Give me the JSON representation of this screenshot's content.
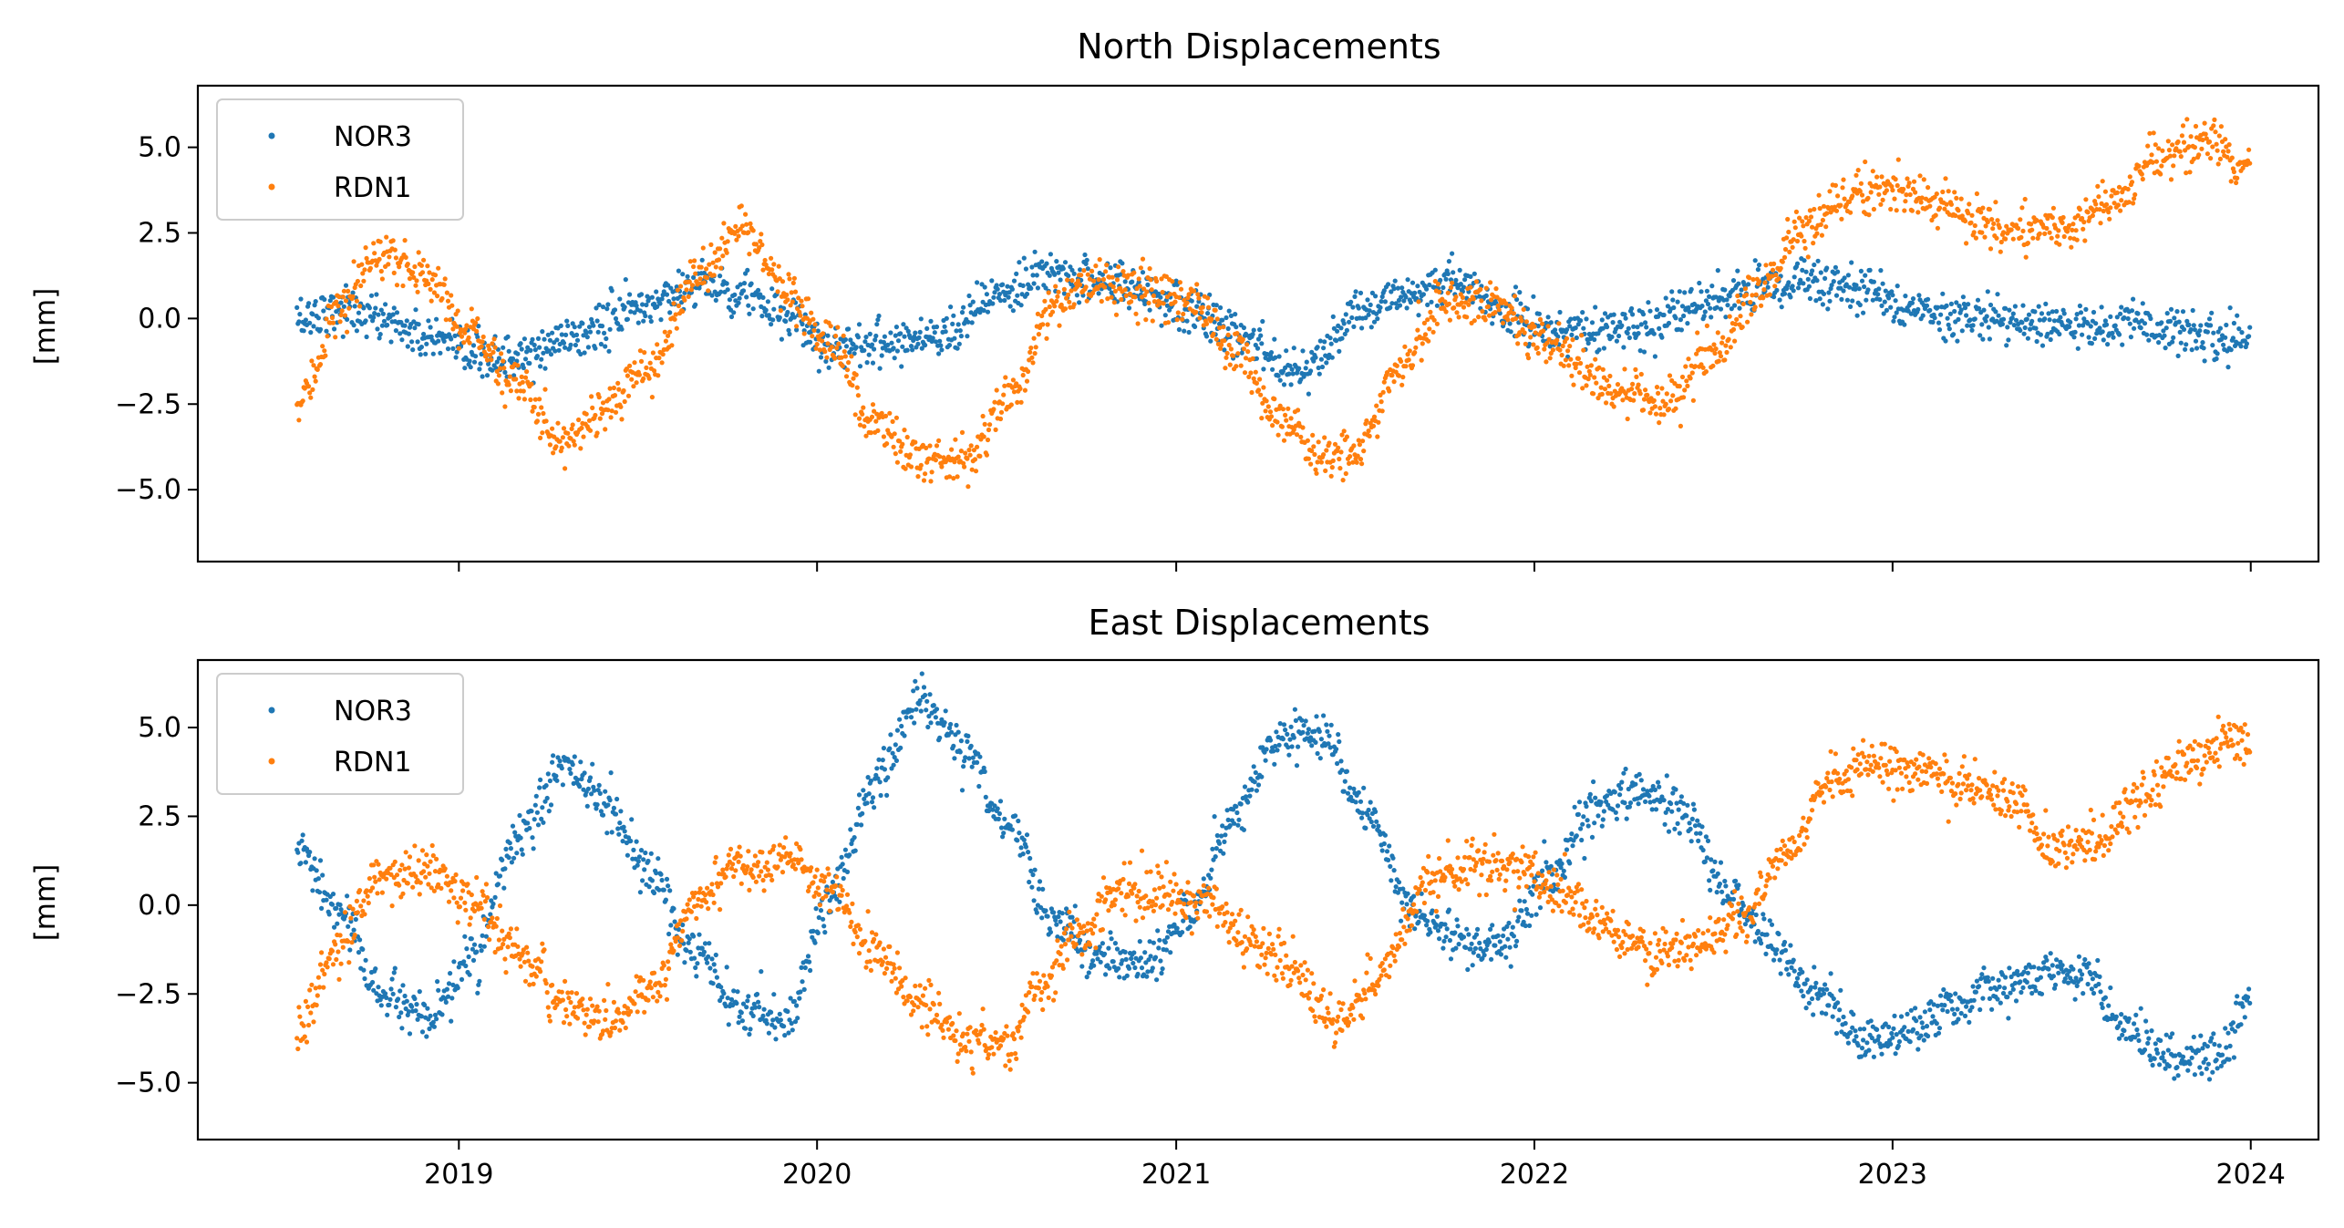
{
  "chart_data": [
    {
      "type": "scatter",
      "title": "North Displacements",
      "xlabel": "",
      "ylabel": "[mm]",
      "ylim": [
        -7.1,
        6.8
      ],
      "xlim": [
        "2018-04-10",
        "2024-03-10"
      ],
      "x_ticks": [
        "2019",
        "2020",
        "2021",
        "2022",
        "2023",
        "2024"
      ],
      "x_tick_labels_visible": false,
      "y_ticks": [
        -5.0,
        -2.5,
        0.0,
        2.5,
        5.0
      ],
      "y_tick_labels": [
        "−5.0",
        "−2.5",
        "0.0",
        "2.5",
        "5.0"
      ],
      "legend": "top-left",
      "grid": false,
      "series": [
        {
          "name": "NOR3",
          "color": "#1f77b4",
          "x": [
            "2018-07-20",
            "2018-09-01",
            "2018-10-15",
            "2018-12-01",
            "2019-01-15",
            "2019-03-01",
            "2019-05-01",
            "2019-07-01",
            "2019-09-01",
            "2019-10-15",
            "2019-12-01",
            "2020-01-15",
            "2020-03-01",
            "2020-05-01",
            "2020-07-01",
            "2020-09-01",
            "2020-10-15",
            "2020-12-01",
            "2021-01-15",
            "2021-03-01",
            "2021-05-01",
            "2021-06-01",
            "2021-07-01",
            "2021-09-01",
            "2021-10-15",
            "2021-12-01",
            "2022-01-15",
            "2022-03-01",
            "2022-05-01",
            "2022-07-01",
            "2022-09-01",
            "2022-10-15",
            "2022-12-01",
            "2023-01-15",
            "2023-03-01",
            "2023-05-01",
            "2023-07-01",
            "2023-09-01",
            "2023-10-15",
            "2023-12-01",
            "2024-01-01"
          ],
          "y": [
            0.0,
            0.3,
            0.0,
            -0.6,
            -1.1,
            -1.2,
            -0.5,
            0.3,
            1.0,
            0.8,
            0.0,
            -0.8,
            -0.7,
            -0.5,
            0.6,
            1.3,
            1.1,
            0.8,
            0.3,
            -0.5,
            -1.4,
            -1.0,
            0.1,
            0.8,
            1.0,
            0.2,
            -0.3,
            -0.4,
            -0.2,
            0.5,
            1.0,
            1.1,
            0.8,
            0.3,
            0.1,
            -0.1,
            -0.2,
            -0.2,
            -0.3,
            -0.6,
            -0.6
          ]
        },
        {
          "name": "RDN1",
          "color": "#ff7f0e",
          "x": [
            "2018-07-20",
            "2018-09-01",
            "2018-10-15",
            "2018-12-01",
            "2019-01-15",
            "2019-03-01",
            "2019-04-15",
            "2019-06-01",
            "2019-07-15",
            "2019-09-01",
            "2019-10-20",
            "2019-12-01",
            "2020-01-15",
            "2020-03-01",
            "2020-04-15",
            "2020-06-01",
            "2020-07-15",
            "2020-09-01",
            "2020-10-15",
            "2020-12-01",
            "2021-01-15",
            "2021-03-01",
            "2021-04-15",
            "2021-06-01",
            "2021-07-01",
            "2021-08-15",
            "2021-10-01",
            "2021-11-15",
            "2022-01-01",
            "2022-02-15",
            "2022-04-01",
            "2022-05-15",
            "2022-07-01",
            "2022-08-15",
            "2022-10-01",
            "2022-11-15",
            "2023-01-01",
            "2023-02-15",
            "2023-04-01",
            "2023-05-15",
            "2023-07-01",
            "2023-08-15",
            "2023-10-01",
            "2023-11-15",
            "2024-01-01"
          ],
          "y": [
            -2.6,
            0.2,
            1.9,
            1.2,
            -0.5,
            -1.9,
            -3.5,
            -2.6,
            -1.5,
            1.3,
            2.7,
            0.6,
            -0.8,
            -3.0,
            -4.1,
            -4.1,
            -2.3,
            0.5,
            1.1,
            0.8,
            0.5,
            -1.0,
            -2.8,
            -4.1,
            -4.0,
            -1.5,
            0.4,
            0.5,
            -0.5,
            -1.4,
            -2.2,
            -2.5,
            -1.0,
            0.6,
            2.6,
            3.5,
            3.9,
            3.3,
            2.8,
            2.5,
            2.7,
            3.5,
            4.6,
            5.2,
            4.3
          ]
        }
      ]
    },
    {
      "type": "scatter",
      "title": "East Displacements",
      "xlabel": "",
      "ylabel": "[mm]",
      "ylim": [
        -6.6,
        6.9
      ],
      "xlim": [
        "2018-04-10",
        "2024-03-10"
      ],
      "x_ticks": [
        "2019",
        "2020",
        "2021",
        "2022",
        "2023",
        "2024"
      ],
      "x_tick_labels_visible": true,
      "y_ticks": [
        -5.0,
        -2.5,
        0.0,
        2.5,
        5.0
      ],
      "y_tick_labels": [
        "−5.0",
        "−2.5",
        "0.0",
        "2.5",
        "5.0"
      ],
      "legend": "top-left",
      "grid": false,
      "series": [
        {
          "name": "NOR3",
          "color": "#1f77b4",
          "x": [
            "2018-07-20",
            "2018-09-01",
            "2018-10-15",
            "2018-12-01",
            "2019-01-15",
            "2019-03-01",
            "2019-04-20",
            "2019-06-01",
            "2019-07-15",
            "2019-09-01",
            "2019-10-15",
            "2019-12-01",
            "2020-01-15",
            "2020-03-01",
            "2020-04-15",
            "2020-06-01",
            "2020-07-15",
            "2020-09-01",
            "2020-10-15",
            "2020-12-01",
            "2021-01-15",
            "2021-03-01",
            "2021-04-15",
            "2021-06-01",
            "2021-07-15",
            "2021-09-01",
            "2021-10-15",
            "2021-12-01",
            "2022-01-15",
            "2022-03-01",
            "2022-04-15",
            "2022-06-01",
            "2022-07-15",
            "2022-09-01",
            "2022-10-15",
            "2022-12-01",
            "2023-01-15",
            "2023-03-01",
            "2023-04-15",
            "2023-06-01",
            "2023-07-15",
            "2023-09-01",
            "2023-10-15",
            "2023-12-01",
            "2024-01-01"
          ],
          "y": [
            1.5,
            -0.2,
            -2.5,
            -3.3,
            -1.5,
            1.8,
            3.9,
            2.8,
            0.8,
            -1.5,
            -3.0,
            -3.2,
            0.3,
            3.5,
            5.8,
            4.3,
            2.2,
            -0.5,
            -1.5,
            -1.6,
            -0.3,
            2.5,
            4.7,
            4.8,
            2.5,
            -0.2,
            -1.1,
            -1.1,
            0.8,
            2.6,
            3.3,
            2.5,
            0.5,
            -1.1,
            -2.5,
            -3.8,
            -3.7,
            -2.8,
            -2.3,
            -2.0,
            -2.0,
            -3.5,
            -4.4,
            -4.2,
            -2.6
          ]
        },
        {
          "name": "RDN1",
          "color": "#ff7f0e",
          "x": [
            "2018-07-20",
            "2018-09-01",
            "2018-10-15",
            "2018-12-01",
            "2019-01-15",
            "2019-03-01",
            "2019-04-15",
            "2019-06-01",
            "2019-07-15",
            "2019-09-01",
            "2019-10-15",
            "2019-12-01",
            "2020-01-15",
            "2020-03-01",
            "2020-04-15",
            "2020-06-01",
            "2020-07-15",
            "2020-08-15",
            "2020-09-20",
            "2020-11-01",
            "2020-12-15",
            "2021-02-01",
            "2021-03-15",
            "2021-05-01",
            "2021-06-15",
            "2021-08-01",
            "2021-09-15",
            "2021-11-01",
            "2021-12-15",
            "2022-02-01",
            "2022-03-15",
            "2022-05-01",
            "2022-06-15",
            "2022-08-01",
            "2022-09-15",
            "2022-11-01",
            "2022-12-15",
            "2023-02-01",
            "2023-03-15",
            "2023-05-01",
            "2023-06-15",
            "2023-08-01",
            "2023-09-15",
            "2023-11-01",
            "2023-12-15",
            "2024-01-01"
          ],
          "y": [
            -3.5,
            -1.2,
            0.8,
            1.0,
            0.1,
            -1.3,
            -2.7,
            -3.3,
            -2.5,
            0.2,
            1.2,
            1.2,
            0.4,
            -1.3,
            -2.8,
            -3.8,
            -3.9,
            -2.4,
            -1.0,
            0.3,
            0.4,
            0.1,
            -0.9,
            -1.9,
            -3.3,
            -1.8,
            0.6,
            1.2,
            1.0,
            0.3,
            -0.6,
            -1.3,
            -1.2,
            -0.3,
            1.5,
            3.5,
            3.9,
            3.7,
            3.4,
            2.9,
            1.5,
            1.9,
            3.2,
            4.1,
            4.6,
            4.4
          ]
        }
      ]
    }
  ]
}
